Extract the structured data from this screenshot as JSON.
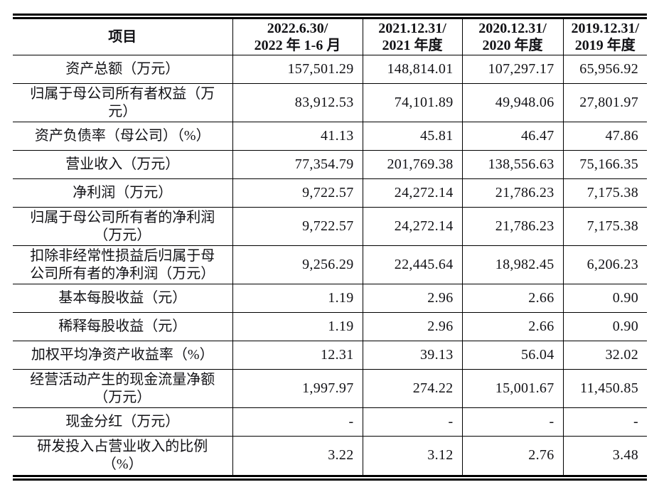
{
  "colors": {
    "background": "#ffffff",
    "text": "#121216",
    "rule": "#000000"
  },
  "table": {
    "columns": [
      {
        "label": "项目"
      },
      {
        "label": "2022.6.30/\n2022 年 1-6 月"
      },
      {
        "label": "2021.12.31/\n2021 年度"
      },
      {
        "label": "2020.12.31/\n2020 年度"
      },
      {
        "label": "2019.12.31/\n2019 年度"
      }
    ],
    "rows": [
      {
        "item": "资产总额（万元）",
        "values": [
          "157,501.29",
          "148,814.01",
          "107,297.17",
          "65,956.92"
        ]
      },
      {
        "item": "归属于母公司所有者权益（万\n元）",
        "values": [
          "83,912.53",
          "74,101.89",
          "49,948.06",
          "27,801.97"
        ]
      },
      {
        "item": "资产负债率（母公司）（%）",
        "values": [
          "41.13",
          "45.81",
          "46.47",
          "47.86"
        ]
      },
      {
        "item": "营业收入（万元）",
        "values": [
          "77,354.79",
          "201,769.38",
          "138,556.63",
          "75,166.35"
        ]
      },
      {
        "item": "净利润（万元）",
        "values": [
          "9,722.57",
          "24,272.14",
          "21,786.23",
          "7,175.38"
        ]
      },
      {
        "item": "归属于母公司所有者的净利润\n（万元）",
        "values": [
          "9,722.57",
          "24,272.14",
          "21,786.23",
          "7,175.38"
        ]
      },
      {
        "item": "扣除非经常性损益后归属于母\n公司所有者的净利润（万元）",
        "values": [
          "9,256.29",
          "22,445.64",
          "18,982.45",
          "6,206.23"
        ]
      },
      {
        "item": "基本每股收益（元）",
        "values": [
          "1.19",
          "2.96",
          "2.66",
          "0.90"
        ]
      },
      {
        "item": "稀释每股收益（元）",
        "values": [
          "1.19",
          "2.96",
          "2.66",
          "0.90"
        ]
      },
      {
        "item": "加权平均净资产收益率（%）",
        "values": [
          "12.31",
          "39.13",
          "56.04",
          "32.02"
        ]
      },
      {
        "item": "经营活动产生的现金流量净额\n（万元）",
        "values": [
          "1,997.97",
          "274.22",
          "15,001.67",
          "11,450.85"
        ]
      },
      {
        "item": "现金分红（万元）",
        "values": [
          "-",
          "-",
          "-",
          "-"
        ]
      },
      {
        "item": "研发投入占营业收入的比例\n（%）",
        "values": [
          "3.22",
          "3.12",
          "2.76",
          "3.48"
        ]
      }
    ]
  }
}
